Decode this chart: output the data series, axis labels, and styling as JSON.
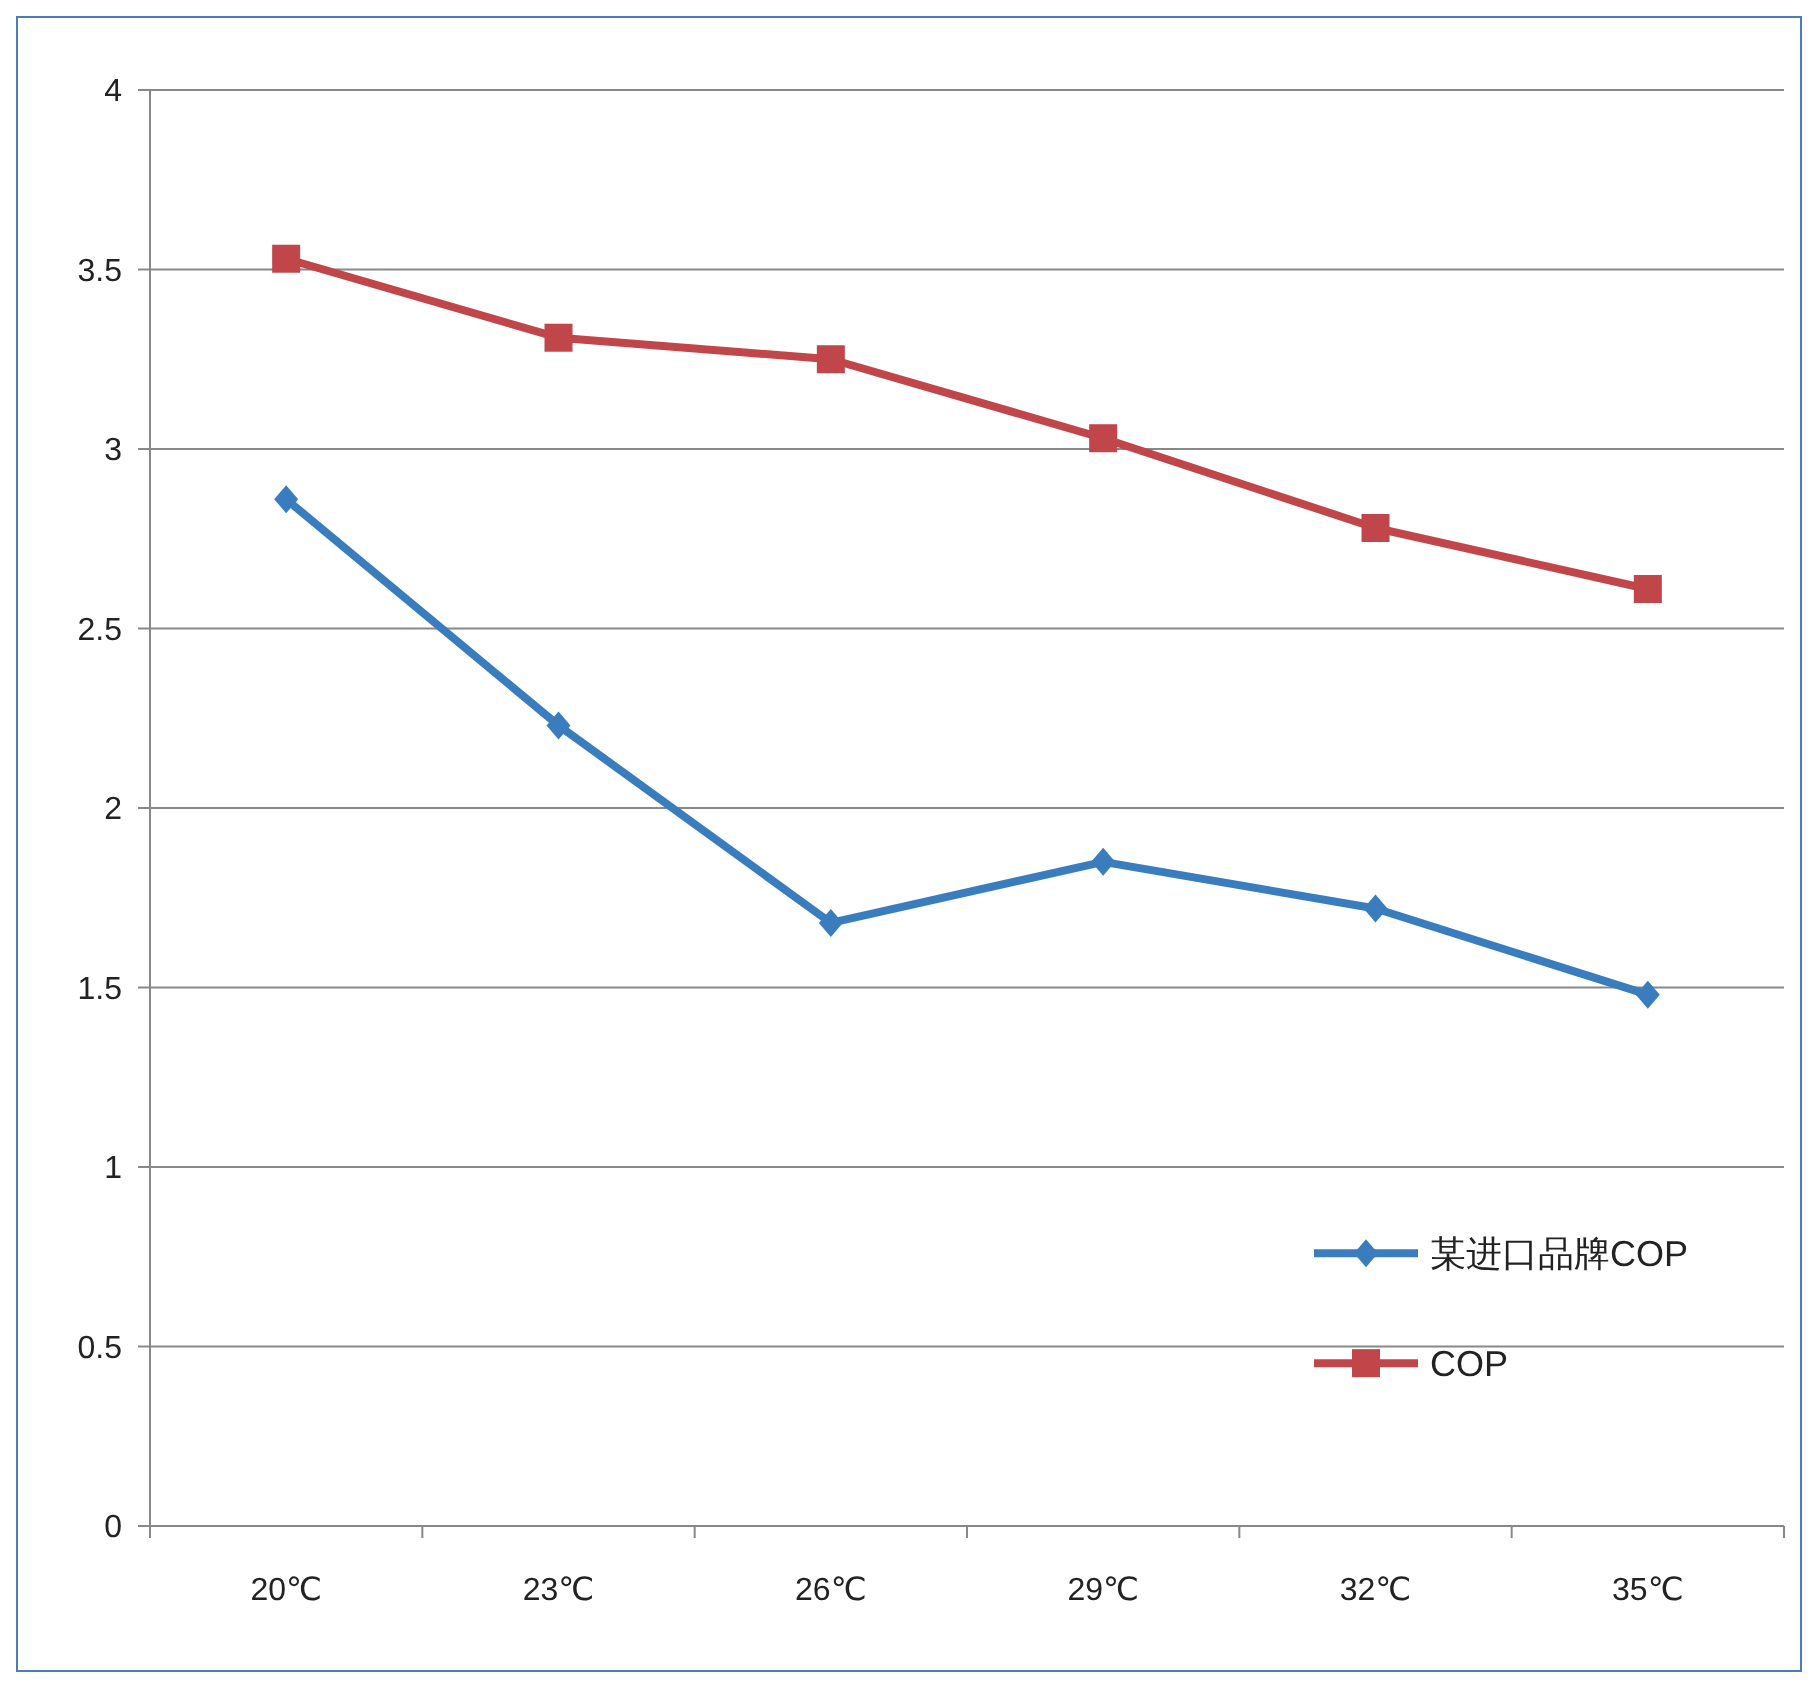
{
  "chart_data": {
    "type": "line",
    "categories": [
      "20℃",
      "23℃",
      "26℃",
      "29℃",
      "32℃",
      "35℃"
    ],
    "series": [
      {
        "name": "某进口品牌COP",
        "color": "#3a7dbf",
        "marker": "diamond",
        "values": [
          2.86,
          2.23,
          1.68,
          1.85,
          1.72,
          1.48
        ]
      },
      {
        "name": "COP",
        "color": "#c0464a",
        "marker": "square",
        "values": [
          3.53,
          3.31,
          3.25,
          3.03,
          2.78,
          2.61
        ]
      }
    ],
    "ylim": [
      0,
      4
    ],
    "yticks": [
      0,
      0.5,
      1,
      1.5,
      2,
      2.5,
      3,
      3.5,
      4
    ],
    "grid": "y",
    "legend": "right"
  }
}
